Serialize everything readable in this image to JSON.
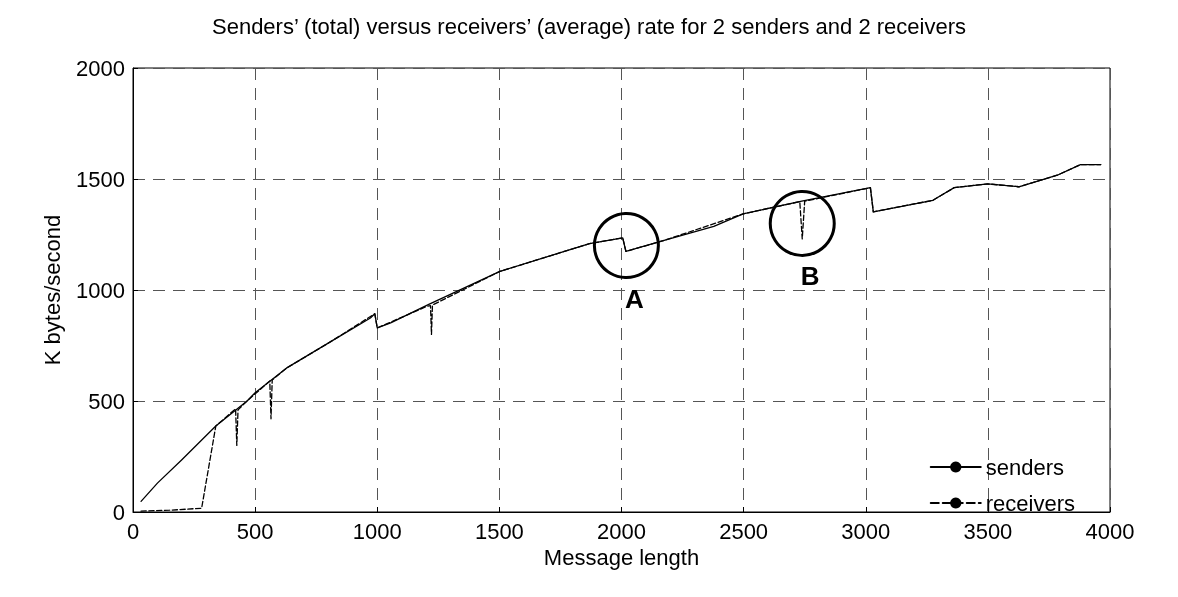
{
  "chart_data": {
    "type": "line",
    "title": "Senders’ (total) versus receivers’ (average) rate for 2 senders and 2 receivers",
    "xlabel": "Message length",
    "ylabel": "K bytes/second",
    "xlim": [
      0,
      4000
    ],
    "xticks": [
      0,
      500,
      1000,
      1500,
      2000,
      2500,
      3000,
      3500,
      4000
    ],
    "ylim": [
      0,
      2000
    ],
    "yticks": [
      0,
      500,
      1000,
      1500,
      2000
    ],
    "grid": true,
    "legend": "bottom right",
    "marker": "none",
    "series": [
      {
        "name": "senders",
        "color": "#000000",
        "line_style": "solid",
        "x": [
          33,
          100,
          200,
          339,
          467,
          500,
          628,
          806,
          972,
          990,
          1000,
          1055,
          1211,
          1500,
          1869,
          2005,
          2018,
          2171,
          2378,
          2498,
          2738,
          3019,
          3031,
          3275,
          3362,
          3499,
          3627,
          3784,
          3879,
          3962
        ],
        "values": [
          48,
          130,
          235,
          387,
          500,
          537,
          648,
          765,
          874,
          893,
          829,
          852,
          935,
          1083,
          1209,
          1235,
          1174,
          1222,
          1287,
          1343,
          1400,
          1461,
          1352,
          1404,
          1461,
          1478,
          1465,
          1517,
          1565,
          1565
        ]
      },
      {
        "name": "receivers",
        "color": "#000000",
        "line_style": "dashed",
        "x": [
          33,
          150,
          281,
          339,
          420,
          425,
          430,
          467,
          560,
          565,
          570,
          628,
          806,
          990,
          1000,
          1200,
          1218,
          1222,
          1226,
          1500,
          1869,
          2005,
          2018,
          2171,
          2498,
          2730,
          2740,
          2750,
          3019,
          3031,
          3275,
          3362,
          3499,
          3627,
          3784,
          3879,
          3962
        ],
        "values": [
          4,
          8,
          17,
          387,
          465,
          300,
          460,
          500,
          590,
          420,
          595,
          648,
          765,
          893,
          829,
          925,
          930,
          800,
          932,
          1083,
          1209,
          1235,
          1174,
          1222,
          1343,
          1398,
          1230,
          1400,
          1461,
          1352,
          1404,
          1461,
          1478,
          1465,
          1517,
          1565,
          1565
        ]
      }
    ],
    "annotations": [
      {
        "text": "A",
        "x": 2020,
        "y": 1200
      },
      {
        "text": "B",
        "x": 2740,
        "y": 1300
      }
    ]
  }
}
